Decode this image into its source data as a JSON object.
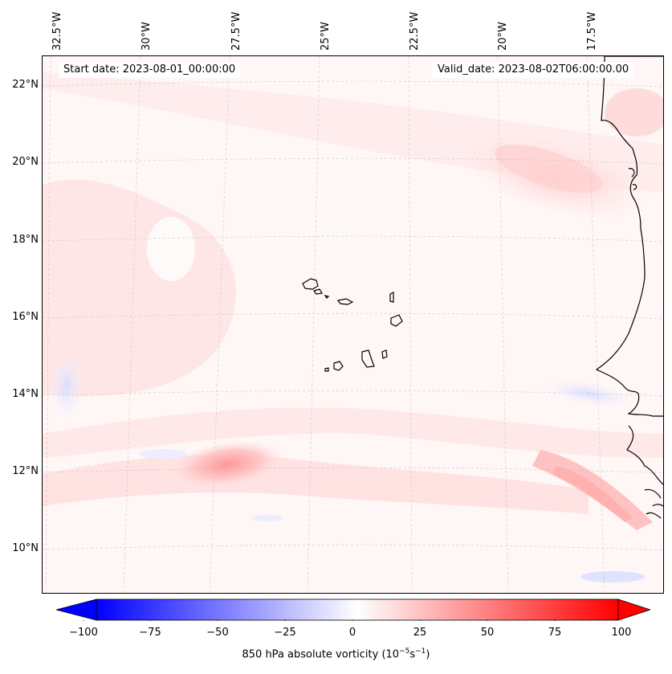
{
  "header": {
    "start_date": "Start date: 2023-08-01_00:00:00",
    "valid_date": "Valid_date: 2023-08-02T06:00:00.00"
  },
  "axes": {
    "longitude_labels": [
      "32.5°W",
      "30°W",
      "27.5°W",
      "25°W",
      "22.5°W",
      "20°W",
      "17.5°W"
    ],
    "latitude_labels": [
      "22°N",
      "20°N",
      "18°N",
      "16°N",
      "14°N",
      "12°N",
      "10°N"
    ]
  },
  "colorbar": {
    "ticks": [
      "−100",
      "−75",
      "−50",
      "−25",
      "0",
      "25",
      "50",
      "75",
      "100"
    ],
    "range": [
      -100,
      100
    ],
    "label_text": "850 hPa absolute vorticity (10",
    "label_exp1": "−5",
    "label_mid": "s",
    "label_exp2": "−1",
    "label_end": ")",
    "colors": {
      "min": "#0000ff",
      "mid": "#ffffff",
      "max": "#ff0000"
    }
  },
  "colors": {
    "coast": "#000000",
    "grid": "#bbbbbb",
    "light_pink": "#ffe4e4",
    "pink": "#ffcccc",
    "red_core": "#ff9d9d",
    "light_blue": "#e8ecff"
  }
}
